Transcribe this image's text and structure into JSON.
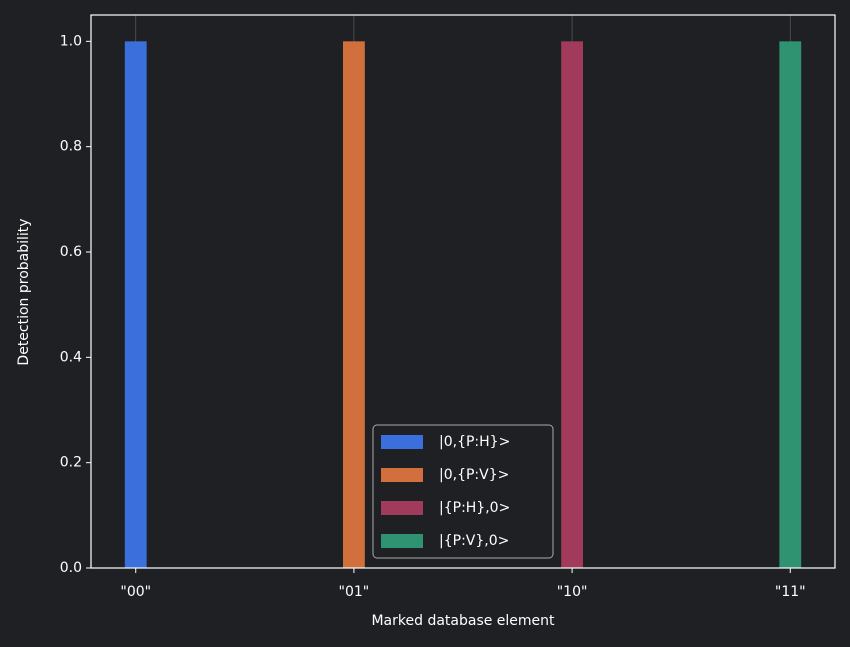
{
  "chart_data": {
    "type": "bar",
    "xlabel": "Marked database element",
    "ylabel": "Detection probability",
    "categories": [
      "\"00\"",
      "\"01\"",
      "\"10\"",
      "\"11\""
    ],
    "series": [
      {
        "name": "|0,{P:H}>",
        "color": "#3b6fdc",
        "values": [
          1.0,
          0,
          0,
          0
        ]
      },
      {
        "name": "|0,{P:V}>",
        "color": "#d1703c",
        "values": [
          0,
          1.0,
          0,
          0
        ]
      },
      {
        "name": "|{P:H},0>",
        "color": "#a23a5b",
        "values": [
          0,
          0,
          1.0,
          0
        ]
      },
      {
        "name": "|{P:V},0>",
        "color": "#2f9371",
        "values": [
          0,
          0,
          0,
          1.0
        ]
      }
    ],
    "ylim": [
      0,
      1.05
    ],
    "yticks": [
      {
        "value": 0,
        "label": "0.0"
      },
      0.2,
      0.4,
      0.6,
      0.8,
      {
        "value": 1,
        "label": "1.0"
      }
    ],
    "grid": true,
    "legend": "lower center"
  }
}
